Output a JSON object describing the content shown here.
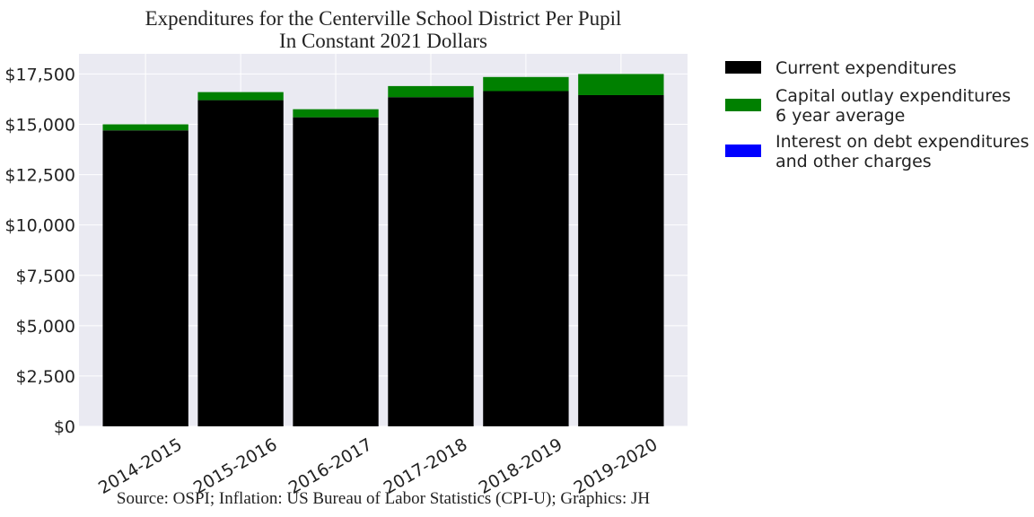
{
  "chart_data": {
    "type": "bar",
    "stacked": true,
    "title": [
      "Expenditures for the Centerville School District Per Pupil",
      "In Constant 2021 Dollars"
    ],
    "xlabel": "",
    "ylabel": "",
    "categories": [
      "2014-2015",
      "2015-2016",
      "2016-2017",
      "2017-2018",
      "2018-2019",
      "2019-2020"
    ],
    "series": [
      {
        "name": "Current expenditures",
        "color": "#000000",
        "values": [
          14700,
          16200,
          15350,
          16350,
          16650,
          16450
        ]
      },
      {
        "name": "Capital outlay expenditures\n6 year average",
        "color": "#008000",
        "values": [
          300,
          400,
          400,
          550,
          700,
          1050
        ]
      },
      {
        "name": "Interest on debt expenditures\nand other charges",
        "color": "#0000ff",
        "values": [
          0,
          0,
          0,
          0,
          0,
          0
        ]
      }
    ],
    "ylim": [
      0,
      18500
    ],
    "yticks": [
      0,
      2500,
      5000,
      7500,
      10000,
      12500,
      15000,
      17500
    ],
    "ytick_labels": [
      "$0",
      "$2,500",
      "$5,000",
      "$7,500",
      "$10,000",
      "$12,500",
      "$15,000",
      "$17,500"
    ],
    "grid": true,
    "legend_position": "outside-right",
    "background": "#eaeaf2",
    "source": "Source: OSPI; Inflation: US Bureau of Labor Statistics (CPI-U); Graphics: JH"
  }
}
